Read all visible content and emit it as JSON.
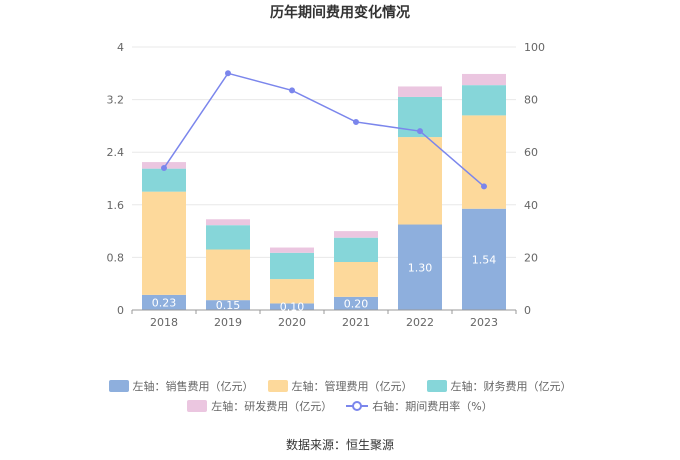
{
  "chart_data": {
    "type": "bar",
    "stacked": true,
    "title": "历年期间费用变化情况",
    "categories": [
      "2018",
      "2019",
      "2020",
      "2021",
      "2022",
      "2023"
    ],
    "ylim_left": [
      0,
      4
    ],
    "yticks_left": [
      "0",
      "0.8",
      "1.6",
      "2.4",
      "3.2",
      "4"
    ],
    "ylim_right": [
      0,
      100
    ],
    "yticks_right": [
      "0",
      "20",
      "40",
      "60",
      "80",
      "100"
    ],
    "grid": true,
    "legend_position": "bottom",
    "series": [
      {
        "name": "左轴：销售费用（亿元）",
        "type": "bar",
        "axis": "left",
        "color": "#8eafdd",
        "values": [
          0.23,
          0.15,
          0.1,
          0.2,
          1.3,
          1.54
        ],
        "labels": [
          "0.23",
          "0.15",
          "0.10",
          "0.20",
          "1.30",
          "1.54"
        ]
      },
      {
        "name": "左轴：管理费用（亿元）",
        "type": "bar",
        "axis": "left",
        "color": "#fdd99b",
        "values": [
          1.57,
          0.77,
          0.37,
          0.53,
          1.33,
          1.42
        ]
      },
      {
        "name": "左轴：财务费用（亿元）",
        "type": "bar",
        "axis": "left",
        "color": "#86d6d9",
        "values": [
          0.35,
          0.37,
          0.4,
          0.37,
          0.61,
          0.46
        ]
      },
      {
        "name": "左轴：研发费用（亿元）",
        "type": "bar",
        "axis": "left",
        "color": "#ebc6e0",
        "values": [
          0.1,
          0.09,
          0.08,
          0.1,
          0.16,
          0.17
        ]
      },
      {
        "name": "右轴：期间费用率（%）",
        "type": "line",
        "axis": "right",
        "color": "#7b86ec",
        "values": [
          54,
          90,
          83.5,
          71.5,
          68,
          47
        ]
      }
    ]
  },
  "source": "数据来源：恒生聚源"
}
